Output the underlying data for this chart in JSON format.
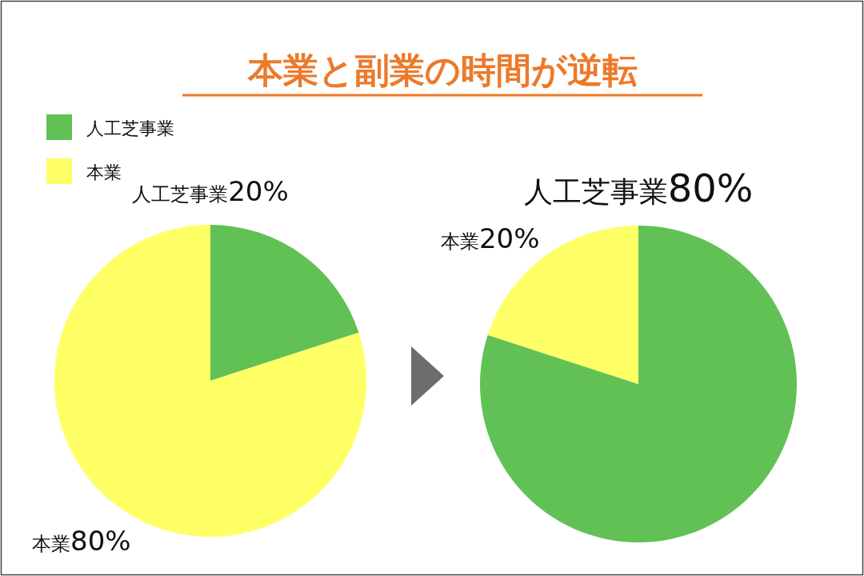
{
  "chart_data": [
    {
      "type": "pie",
      "title": "本業と副業の時間が逆転",
      "legend": "top left",
      "categories": [
        "人工芝事業",
        "本業"
      ],
      "values": [
        20,
        80
      ],
      "colors": [
        "#62c155",
        "#ffff66"
      ],
      "value_labels": [
        "20%",
        "80%"
      ]
    },
    {
      "type": "pie",
      "categories": [
        "人工芝事業",
        "本業"
      ],
      "values": [
        80,
        20
      ],
      "colors": [
        "#62c155",
        "#ffff66"
      ],
      "value_labels": [
        "80%",
        "20%"
      ]
    }
  ]
}
